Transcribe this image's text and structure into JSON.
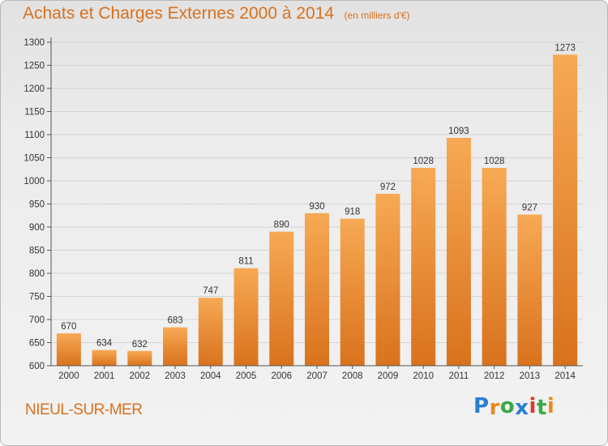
{
  "header": {
    "title": "Achats et Charges Externes 2000 à 2014",
    "unit": "(en milliers d'€)"
  },
  "location": "NIEUL-SUR-MER",
  "logo": {
    "text": "Proxiti",
    "letters": [
      {
        "ch": "P",
        "color": "#2a7fd0"
      },
      {
        "ch": "r",
        "color": "#e98a1b"
      },
      {
        "ch": "o",
        "color": "#3aa847"
      },
      {
        "ch": "x",
        "color": "#2a7fd0"
      },
      {
        "ch": "i",
        "color": "#e2372b"
      },
      {
        "ch": "t",
        "color": "#3aa847"
      },
      {
        "ch": "i",
        "color": "#e98a1b"
      }
    ]
  },
  "colors": {
    "accent": "#d9711e",
    "bar_top": "#f7a954",
    "bar_bottom": "#d9721d",
    "grid": "#d4d4d4",
    "axis": "#555555"
  },
  "chart_data": {
    "type": "bar",
    "title": "Achats et Charges Externes 2000 à 2014",
    "subtitle": "(en milliers d'€)",
    "xlabel": "",
    "ylabel": "",
    "categories": [
      "2000",
      "2001",
      "2002",
      "2003",
      "2004",
      "2005",
      "2006",
      "2007",
      "2008",
      "2009",
      "2010",
      "2011",
      "2012",
      "2013",
      "2014"
    ],
    "values": [
      670,
      634,
      632,
      683,
      747,
      811,
      890,
      930,
      918,
      972,
      1028,
      1093,
      1028,
      927,
      1273
    ],
    "ylim": [
      600,
      1300
    ],
    "yticks": [
      600,
      650,
      700,
      750,
      800,
      850,
      900,
      950,
      1000,
      1050,
      1100,
      1150,
      1200,
      1250,
      1300
    ],
    "grid": true,
    "legend": "none"
  }
}
